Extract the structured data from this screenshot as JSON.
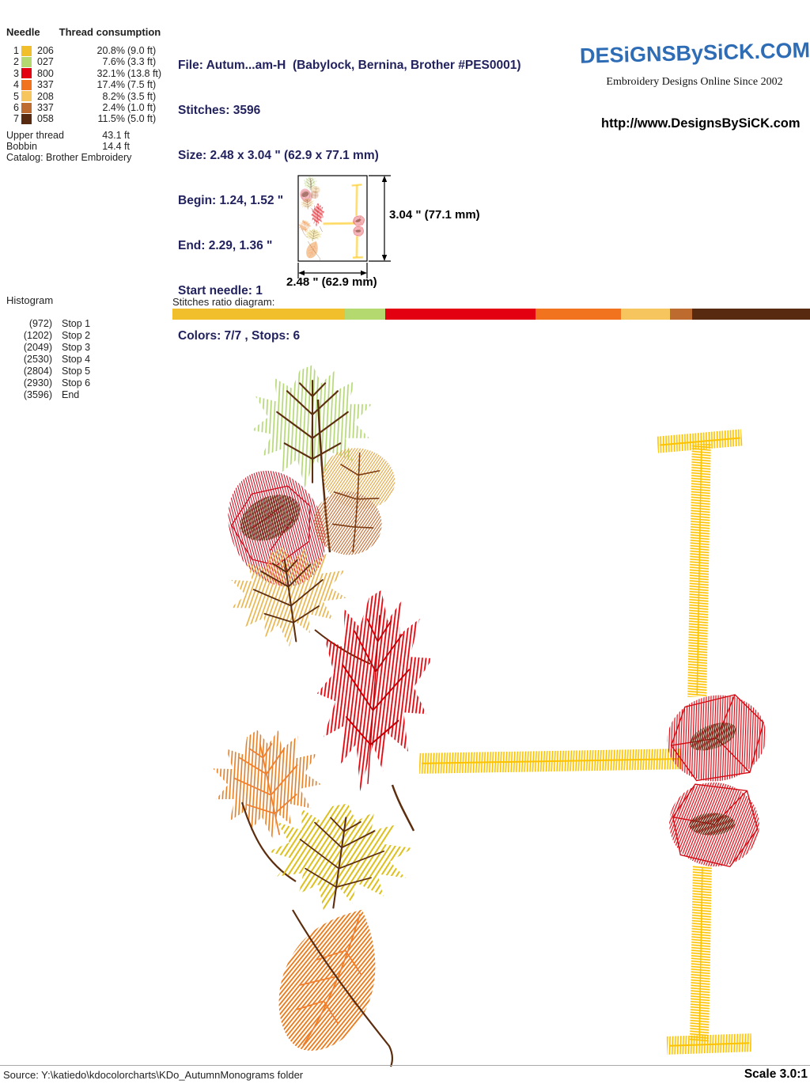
{
  "needle_table": {
    "header_needle": "Needle",
    "header_consumption": "Thread consumption",
    "rows": [
      {
        "needle": "1",
        "color": "#f1bf2b",
        "thread": "206",
        "percent": "20.8%",
        "length": "(9.0 ft)"
      },
      {
        "needle": "2",
        "color": "#b4d96f",
        "thread": "027",
        "percent": "7.6%",
        "length": "(3.3 ft)"
      },
      {
        "needle": "3",
        "color": "#e30010",
        "thread": "800",
        "percent": "32.1%",
        "length": "(13.8 ft)"
      },
      {
        "needle": "4",
        "color": "#f1731e",
        "thread": "337",
        "percent": "17.4%",
        "length": "(7.5 ft)"
      },
      {
        "needle": "5",
        "color": "#f6c55e",
        "thread": "208",
        "percent": "8.2%",
        "length": "(3.5 ft)"
      },
      {
        "needle": "6",
        "color": "#bd6b2f",
        "thread": "337",
        "percent": "2.4%",
        "length": "(1.0 ft)"
      },
      {
        "needle": "7",
        "color": "#582a10",
        "thread": "058",
        "percent": "11.5%",
        "length": "(5.0 ft)"
      }
    ],
    "upper_thread_label": "Upper thread",
    "upper_thread_value": "43.1 ft",
    "bobbin_label": "Bobbin",
    "bobbin_value": "14.4 ft",
    "catalog_line": "Catalog: Brother Embroidery"
  },
  "file_info": {
    "file": "File: Autum...am-H  (Babylock, Bernina, Brother #PES0001)",
    "stitches": "Stitches: 3596",
    "size": "Size: 2.48 x 3.04 \" (62.9 x 77.1 mm)",
    "begin": "Begin: 1.24, 1.52 \"",
    "end": "End: 2.29, 1.36 \"",
    "start_needle": "Start needle: 1",
    "colors": "Colors: 7/7 , Stops: 6"
  },
  "brand": {
    "logo_text": "DESiGNSBySiCK.COM",
    "tagline": "Embroidery Designs Online Since 2002",
    "url": "http://www.DesignsBySiCK.com",
    "logo_color": "#2e6db5"
  },
  "preview": {
    "height_label": "3.04 \" (77.1 mm)",
    "width_label": "2.48 \" (62.9 mm)"
  },
  "histogram": {
    "title": "Histogram",
    "rows": [
      {
        "count": "(972)",
        "label": "Stop 1"
      },
      {
        "count": "(1202)",
        "label": "Stop 2"
      },
      {
        "count": "(2049)",
        "label": "Stop 3"
      },
      {
        "count": "(2530)",
        "label": "Stop 4"
      },
      {
        "count": "(2804)",
        "label": "Stop 5"
      },
      {
        "count": "(2930)",
        "label": "Stop 6"
      },
      {
        "count": "(3596)",
        "label": "End"
      }
    ]
  },
  "ratio_diagram": {
    "label": "Stitches ratio diagram:",
    "segments": [
      {
        "color": "#f1bf2b",
        "percent": 27.0
      },
      {
        "color": "#b4d96f",
        "percent": 6.4
      },
      {
        "color": "#e30010",
        "percent": 23.6
      },
      {
        "color": "#f1731e",
        "percent": 13.4
      },
      {
        "color": "#f6c55e",
        "percent": 7.6
      },
      {
        "color": "#bd6b2f",
        "percent": 3.5
      },
      {
        "color": "#582a10",
        "percent": 18.5
      }
    ]
  },
  "footer": {
    "source": "Source: Y:\\katiedo\\kdocolorcharts\\KDo_AutumnMonograms folder",
    "scale": "Scale 3.0:1"
  }
}
